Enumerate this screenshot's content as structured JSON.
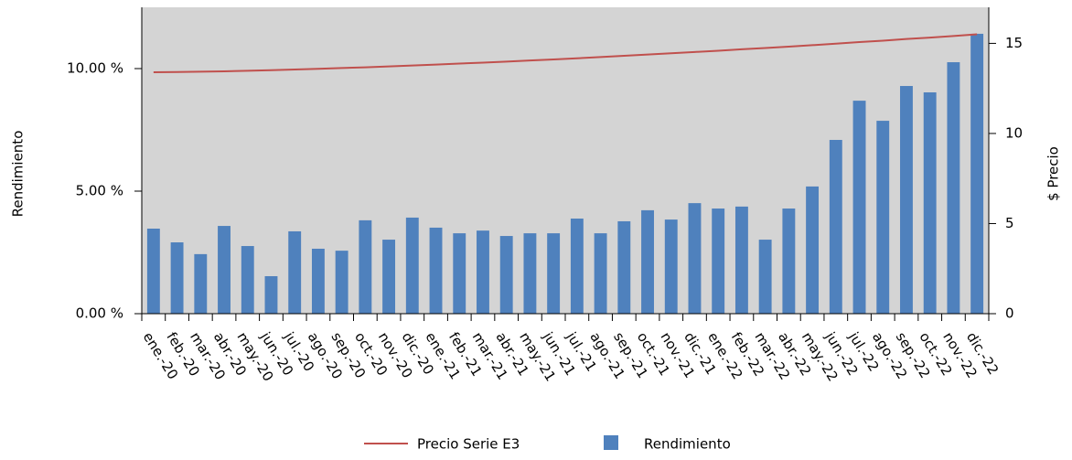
{
  "chart_data": {
    "type": "bar_line",
    "categories": [
      "ene.-20",
      "feb.-20",
      "mar.-20",
      "abr.-20",
      "may.-20",
      "jun.-20",
      "jul.-20",
      "ago.-20",
      "sep.-20",
      "oct.-20",
      "nov.-20",
      "dic.-20",
      "ene.-21",
      "feb.-21",
      "mar.-21",
      "abr.-21",
      "may.-21",
      "jun.-21",
      "jul.-21",
      "ago.-21",
      "sep.-21",
      "oct.-21",
      "nov.-21",
      "dic.-21",
      "ene.-22",
      "feb.-22",
      "mar.-22",
      "abr.-22",
      "may.-22",
      "jun.-22",
      "jul.-22",
      "ago.-22",
      "sep.-22",
      "oct.-22",
      "nov.-22",
      "dic.-22"
    ],
    "series": [
      {
        "name": "Precio Serie E3",
        "type": "line",
        "axis": "y2",
        "color": "#c0504d",
        "values": [
          13.4,
          13.41,
          13.43,
          13.45,
          13.48,
          13.51,
          13.55,
          13.59,
          13.63,
          13.67,
          13.72,
          13.77,
          13.82,
          13.88,
          13.93,
          13.99,
          14.05,
          14.11,
          14.17,
          14.24,
          14.31,
          14.38,
          14.45,
          14.52,
          14.59,
          14.67,
          14.74,
          14.82,
          14.9,
          14.98,
          15.07,
          15.15,
          15.24,
          15.32,
          15.41,
          15.5
        ]
      },
      {
        "name": "Rendimiento",
        "type": "bar",
        "axis": "y",
        "color": "#4f81bd",
        "values": [
          3.47,
          2.91,
          2.43,
          3.58,
          2.76,
          1.53,
          3.36,
          2.65,
          2.57,
          3.81,
          3.02,
          3.92,
          3.51,
          3.28,
          3.39,
          3.17,
          3.28,
          3.28,
          3.88,
          3.28,
          3.77,
          4.22,
          3.84,
          4.51,
          4.29,
          4.37,
          3.02,
          4.29,
          5.19,
          7.09,
          8.69,
          7.87,
          9.29,
          9.03,
          10.26,
          11.42
        ]
      }
    ],
    "y_label": "Rendimiento",
    "y2_label": "$ Precio",
    "ylim": [
      0,
      12.5
    ],
    "yticks": [
      {
        "value": 0,
        "label": "0.00 %"
      },
      {
        "value": 5,
        "label": "5.00 %"
      },
      {
        "value": 10,
        "label": "10.00 %"
      }
    ],
    "y2lim": [
      0,
      17
    ],
    "y2ticks": [
      0,
      5,
      10,
      15
    ],
    "background": "#d4d4d4",
    "legend": "bottom"
  }
}
